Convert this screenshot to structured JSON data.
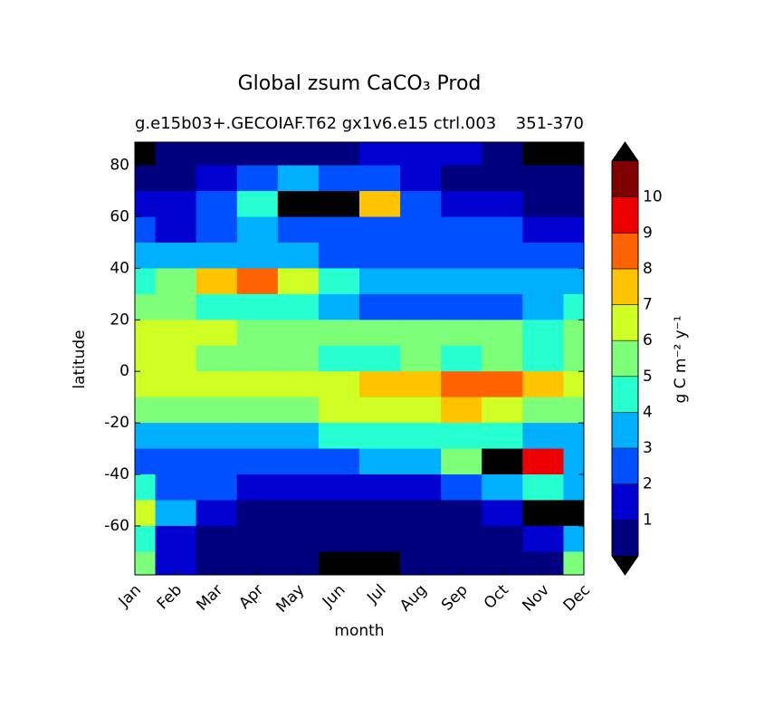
{
  "chart_data": {
    "type": "contourf",
    "title": "Global zsum CaCO₃ Prod",
    "subtitle": "g.e15b03+.GECOIAF.T62 gx1v6.e15 ctrl.003",
    "subtitle_right": "351-370",
    "x_label": "month",
    "y_label": "latitude",
    "categories": [
      "Jan",
      "Feb",
      "Mar",
      "Apr",
      "May",
      "Jun",
      "Jul",
      "Aug",
      "Sep",
      "Oct",
      "Nov",
      "Dec"
    ],
    "y": [
      85,
      75,
      65,
      55,
      45,
      35,
      25,
      15,
      5,
      -5,
      -15,
      -25,
      -35,
      -45,
      -55,
      -65,
      -75
    ],
    "values": [
      [
        12,
        0.5,
        0.5,
        0.5,
        0.5,
        0.5,
        1.5,
        1.5,
        1.5,
        0.5,
        12,
        12
      ],
      [
        0.5,
        0.5,
        1.5,
        2.5,
        3.5,
        2.5,
        2.5,
        1.5,
        0.5,
        0.5,
        0.5,
        0.5
      ],
      [
        1.5,
        1.5,
        2.5,
        4.5,
        12,
        12,
        7,
        2.5,
        1.5,
        1.5,
        0.5,
        0.5
      ],
      [
        2.5,
        1.5,
        2.5,
        3.5,
        2.5,
        2.5,
        2.5,
        2.5,
        2.5,
        2.5,
        1.5,
        1.5
      ],
      [
        3.5,
        3.5,
        3.5,
        3.5,
        3.5,
        2.5,
        2.5,
        2.5,
        2.5,
        2.5,
        2.5,
        2.5
      ],
      [
        4.5,
        5.5,
        7.5,
        8.5,
        6.5,
        4.5,
        3.5,
        3.5,
        3.5,
        3.5,
        3.5,
        3.5
      ],
      [
        5.5,
        5.5,
        4.5,
        4.5,
        4.5,
        3.5,
        2.5,
        2.5,
        2.5,
        2.5,
        3.5,
        4.5
      ],
      [
        6.5,
        6.5,
        6.5,
        5.5,
        5.5,
        5.5,
        5.5,
        5.5,
        5.5,
        5.5,
        4.5,
        5.5
      ],
      [
        6.5,
        6.5,
        5.5,
        5.5,
        5.5,
        4.5,
        4.5,
        5.5,
        4.5,
        5.5,
        4.5,
        5.5
      ],
      [
        6.5,
        6.5,
        6.5,
        6.5,
        6.5,
        6.5,
        7.5,
        7.5,
        8.5,
        8.5,
        7.5,
        6.5
      ],
      [
        5.5,
        5.5,
        5.5,
        5.5,
        5.5,
        6.5,
        6.5,
        6.5,
        7.5,
        6.5,
        5.5,
        5.5
      ],
      [
        3.5,
        3.5,
        3.5,
        3.5,
        3.5,
        4.5,
        4.5,
        4.5,
        4.5,
        4.5,
        3.5,
        3.5
      ],
      [
        2.5,
        2.5,
        2.5,
        2.5,
        2.5,
        2.5,
        3.5,
        3.5,
        5.5,
        12,
        9.5,
        3.5
      ],
      [
        4.5,
        2.5,
        2.5,
        1.5,
        1.5,
        1.5,
        1.5,
        1.5,
        2.5,
        3.5,
        4.5,
        3.5
      ],
      [
        6.5,
        3.5,
        1.5,
        0.5,
        0.5,
        0.5,
        0.5,
        0.5,
        0.5,
        1.5,
        12,
        12
      ],
      [
        4.5,
        1.5,
        0.5,
        0.5,
        0.5,
        0.5,
        0.5,
        0.5,
        0.5,
        0.5,
        1.5,
        3.5
      ],
      [
        5.5,
        1.5,
        0.5,
        0.5,
        0.5,
        12,
        12,
        0.5,
        0.5,
        0.5,
        0.5,
        5.5
      ]
    ],
    "ylim": [
      -79,
      89
    ],
    "yticks": [
      -60,
      -40,
      -20,
      0,
      20,
      40,
      60,
      80
    ],
    "colorbar": {
      "label": "g C m⁻² y⁻¹",
      "lim": [
        0,
        11
      ],
      "ticks": [
        1,
        2,
        3,
        4,
        5,
        6,
        7,
        8,
        9,
        10
      ],
      "colors": [
        "#00007f",
        "#0000d0",
        "#0050ff",
        "#00b0ff",
        "#26ffd0",
        "#7dff7a",
        "#d0ff26",
        "#ffc400",
        "#ff6200",
        "#ee0000",
        "#7f0000"
      ],
      "extend_color": "#000000"
    }
  }
}
